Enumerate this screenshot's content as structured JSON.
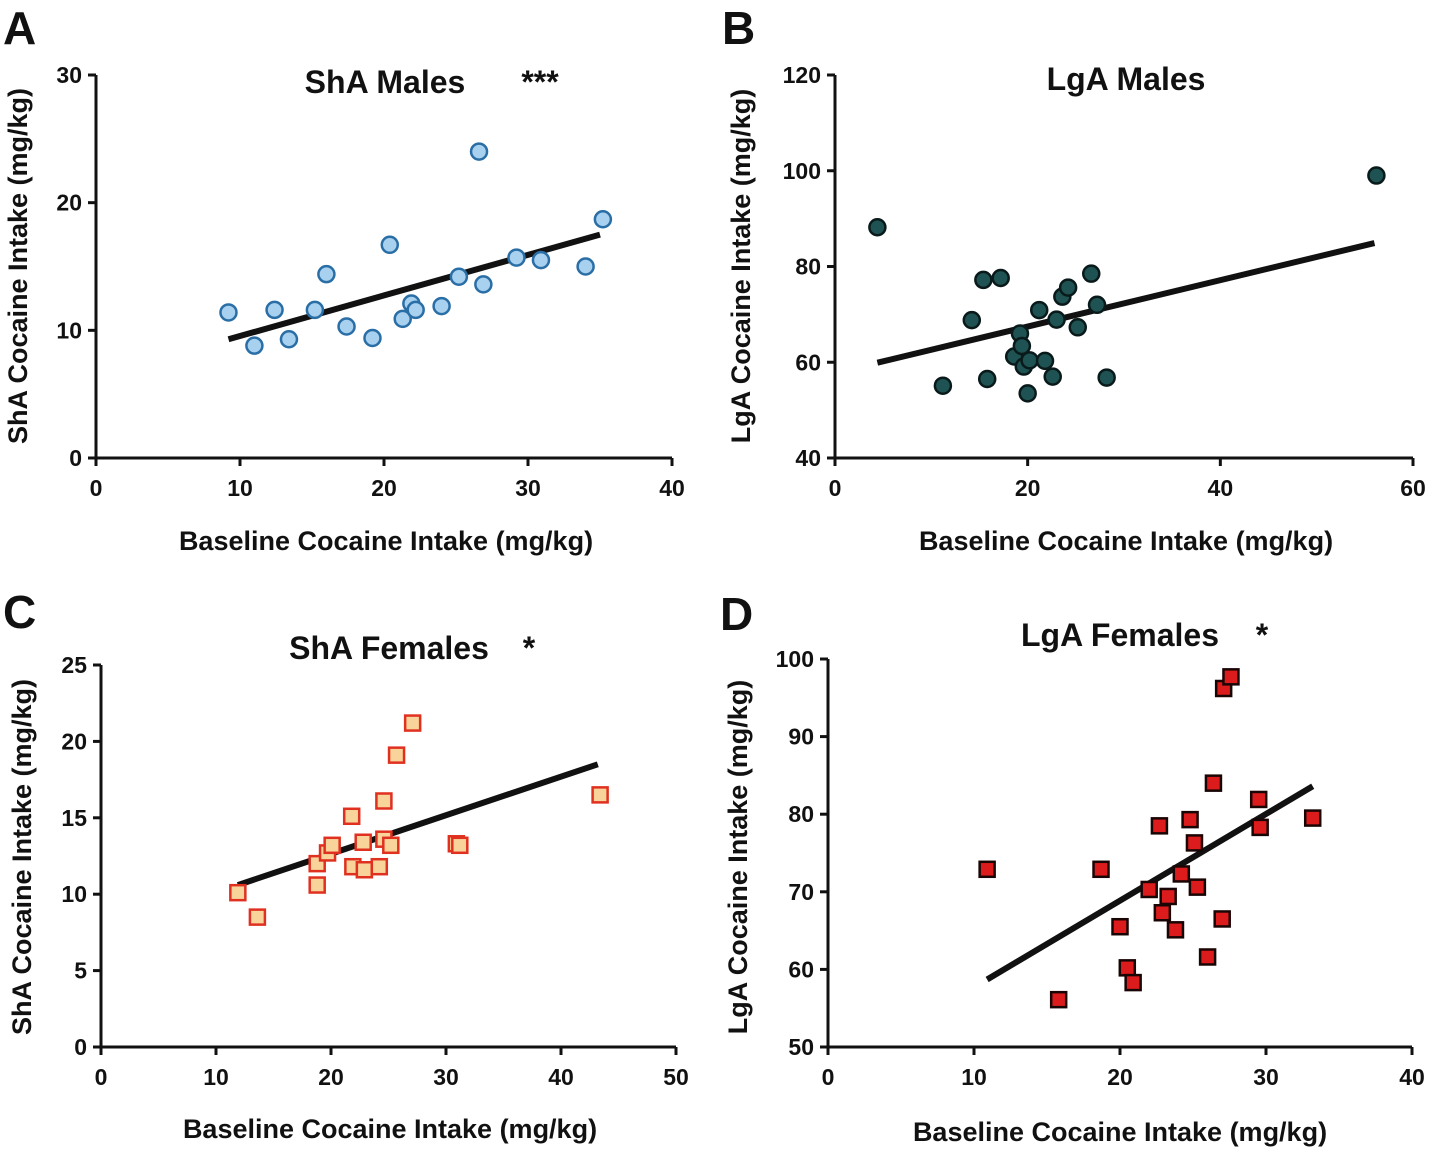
{
  "chart_data": [
    {
      "type": "scatter",
      "panel_label": "A",
      "title": "ShA Males",
      "significance": "***",
      "xlabel": "Baseline Cocaine Intake (mg/kg)",
      "ylabel": "ShA Cocaine Intake (mg/kg)",
      "xlim": [
        0,
        40
      ],
      "ylim": [
        0,
        30
      ],
      "xticks": [
        "0",
        "10",
        "20",
        "30",
        "40"
      ],
      "yticks": [
        "0",
        "10",
        "20",
        "30"
      ],
      "marker": "circle",
      "fill_color": "#a8d0ef",
      "edge_color": "#2a6ea6",
      "points": [
        [
          9.2,
          11.4
        ],
        [
          11.0,
          8.8
        ],
        [
          12.4,
          11.6
        ],
        [
          13.4,
          9.3
        ],
        [
          15.2,
          11.6
        ],
        [
          16.0,
          14.4
        ],
        [
          17.4,
          10.3
        ],
        [
          19.2,
          9.4
        ],
        [
          20.4,
          16.7
        ],
        [
          21.3,
          10.9
        ],
        [
          21.9,
          12.1
        ],
        [
          22.2,
          11.6
        ],
        [
          24.0,
          11.9
        ],
        [
          25.2,
          14.2
        ],
        [
          26.6,
          24.0
        ],
        [
          26.9,
          13.6
        ],
        [
          29.2,
          15.7
        ],
        [
          30.9,
          15.5
        ],
        [
          34.0,
          15.0
        ],
        [
          35.2,
          18.7
        ]
      ],
      "fit_line": [
        [
          9.2,
          9.3
        ],
        [
          35.0,
          17.5
        ]
      ]
    },
    {
      "type": "scatter",
      "panel_label": "B",
      "title": "LgA Males",
      "significance": "",
      "xlabel": "Baseline Cocaine Intake (mg/kg)",
      "ylabel": "LgA Cocaine Intake (mg/kg)",
      "xlim": [
        0,
        60
      ],
      "ylim": [
        40,
        120
      ],
      "xticks": [
        "0",
        "20",
        "40",
        "60"
      ],
      "yticks": [
        "40",
        "60",
        "80",
        "100",
        "120"
      ],
      "marker": "circle",
      "fill_color": "#1f5252",
      "edge_color": "#0a1a1a",
      "points": [
        [
          4.4,
          88.2
        ],
        [
          11.2,
          55.1
        ],
        [
          14.2,
          68.8
        ],
        [
          15.4,
          77.2
        ],
        [
          15.8,
          56.5
        ],
        [
          17.2,
          77.6
        ],
        [
          18.6,
          61.2
        ],
        [
          19.2,
          66.0
        ],
        [
          19.4,
          63.4
        ],
        [
          19.6,
          59.1
        ],
        [
          20.0,
          53.5
        ],
        [
          20.2,
          60.4
        ],
        [
          21.2,
          70.9
        ],
        [
          21.8,
          60.3
        ],
        [
          22.6,
          57.0
        ],
        [
          23.0,
          68.9
        ],
        [
          23.6,
          73.7
        ],
        [
          24.2,
          75.6
        ],
        [
          25.2,
          67.3
        ],
        [
          26.6,
          78.5
        ],
        [
          27.2,
          72.0
        ],
        [
          28.2,
          56.8
        ],
        [
          56.2,
          99.0
        ]
      ],
      "fit_line": [
        [
          4.4,
          59.9
        ],
        [
          56.0,
          84.9
        ]
      ]
    },
    {
      "type": "scatter",
      "panel_label": "C",
      "title": "ShA Females",
      "significance": "*",
      "xlabel": "Baseline Cocaine Intake (mg/kg)",
      "ylabel": "ShA Cocaine Intake (mg/kg)",
      "xlim": [
        0,
        50
      ],
      "ylim": [
        0,
        25
      ],
      "xticks": [
        "0",
        "10",
        "20",
        "30",
        "40",
        "50"
      ],
      "yticks": [
        "0",
        "5",
        "10",
        "15",
        "20",
        "25"
      ],
      "marker": "square",
      "fill_color": "#f8d49a",
      "edge_color": "#e03020",
      "points": [
        [
          11.9,
          10.1
        ],
        [
          13.6,
          8.5
        ],
        [
          18.8,
          12.0
        ],
        [
          18.8,
          10.6
        ],
        [
          19.7,
          12.7
        ],
        [
          20.1,
          13.2
        ],
        [
          21.8,
          15.1
        ],
        [
          21.9,
          11.8
        ],
        [
          22.8,
          13.4
        ],
        [
          22.9,
          11.6
        ],
        [
          24.2,
          11.8
        ],
        [
          24.6,
          16.1
        ],
        [
          24.6,
          13.6
        ],
        [
          25.2,
          13.2
        ],
        [
          25.7,
          19.1
        ],
        [
          27.1,
          21.2
        ],
        [
          30.9,
          13.3
        ],
        [
          31.2,
          13.2
        ],
        [
          43.4,
          16.5
        ]
      ],
      "fit_line": [
        [
          11.9,
          10.6
        ],
        [
          43.2,
          18.5
        ]
      ]
    },
    {
      "type": "scatter",
      "panel_label": "D",
      "title": "LgA Females",
      "significance": "*",
      "xlabel": "Baseline Cocaine Intake (mg/kg)",
      "ylabel": "LgA Cocaine Intake (mg/kg)",
      "xlim": [
        0,
        40
      ],
      "ylim": [
        50,
        100
      ],
      "xticks": [
        "0",
        "10",
        "20",
        "30",
        "40"
      ],
      "yticks": [
        "50",
        "60",
        "70",
        "80",
        "90",
        "100"
      ],
      "marker": "square",
      "fill_color": "#dc1c1c",
      "edge_color": "#1a0505",
      "points": [
        [
          10.9,
          72.9
        ],
        [
          15.8,
          56.1
        ],
        [
          18.7,
          72.9
        ],
        [
          20.0,
          65.5
        ],
        [
          20.5,
          60.2
        ],
        [
          20.9,
          58.3
        ],
        [
          22.0,
          70.3
        ],
        [
          22.7,
          78.5
        ],
        [
          22.9,
          67.3
        ],
        [
          23.3,
          69.4
        ],
        [
          23.8,
          65.1
        ],
        [
          24.2,
          72.3
        ],
        [
          24.8,
          79.3
        ],
        [
          25.1,
          76.3
        ],
        [
          25.3,
          70.6
        ],
        [
          26.0,
          61.6
        ],
        [
          26.4,
          84.0
        ],
        [
          27.0,
          66.5
        ],
        [
          27.1,
          96.2
        ],
        [
          27.6,
          97.7
        ],
        [
          29.5,
          81.9
        ],
        [
          29.6,
          78.3
        ],
        [
          33.2,
          79.5
        ]
      ],
      "fit_line": [
        [
          10.9,
          58.7
        ],
        [
          33.2,
          83.6
        ]
      ]
    }
  ]
}
